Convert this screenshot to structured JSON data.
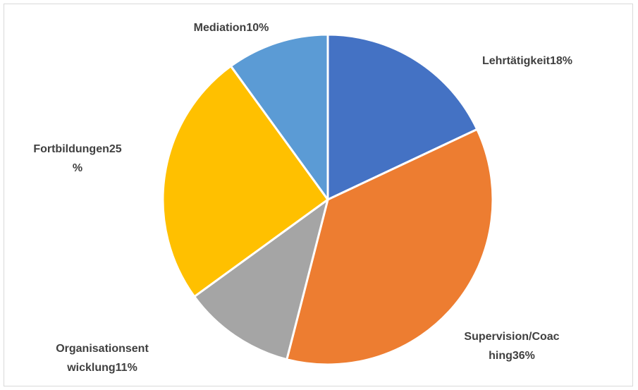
{
  "chart_data": {
    "type": "pie",
    "title": "",
    "slices": [
      {
        "name": "Lehrtätigkeit",
        "value": 18,
        "label_lines": [
          "Lehrtätigkeit18%"
        ],
        "color": "#4472C4"
      },
      {
        "name": "Supervision/Coaching",
        "value": 36,
        "label_lines": [
          "Supervision/Coac",
          "hing36%"
        ],
        "color": "#ED7D31"
      },
      {
        "name": "Organisationsentwicklung",
        "value": 11,
        "label_lines": [
          "Organisationsent",
          "wicklung11%"
        ],
        "color": "#A5A5A5"
      },
      {
        "name": "Fortbildungen",
        "value": 25,
        "label_lines": [
          "Fortbildungen25",
          "%"
        ],
        "color": "#FFC000"
      },
      {
        "name": "Mediation",
        "value": 10,
        "label_lines": [
          "Mediation10%"
        ],
        "color": "#5B9BD5"
      }
    ],
    "legend": "none"
  }
}
